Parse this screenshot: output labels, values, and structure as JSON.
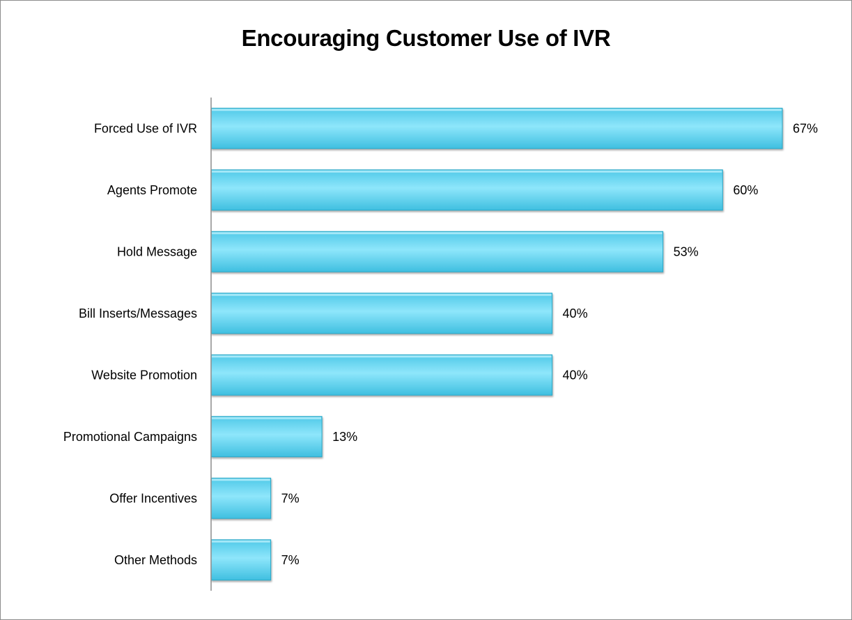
{
  "chart_data": {
    "type": "bar",
    "orientation": "horizontal",
    "title": "Encouraging Customer Use of IVR",
    "xlabel": "",
    "ylabel": "",
    "categories": [
      "Forced Use of IVR",
      "Agents Promote",
      "Hold Message",
      "Bill Inserts/Messages",
      "Website Promotion",
      "Promotional Campaigns",
      "Offer Incentives",
      "Other Methods"
    ],
    "values": [
      67,
      60,
      53,
      40,
      40,
      13,
      7,
      7
    ],
    "value_labels": [
      "67%",
      "60%",
      "53%",
      "40%",
      "40%",
      "13%",
      "7%",
      "7%"
    ],
    "unit": "%",
    "xlim": [
      0,
      70
    ],
    "grid": false,
    "legend": "none",
    "colors": {
      "bar": "#57d0ee",
      "bar_light": "#8ee6fb",
      "bar_dark": "#2aa7c6",
      "axis": "#8c8c8c"
    }
  }
}
